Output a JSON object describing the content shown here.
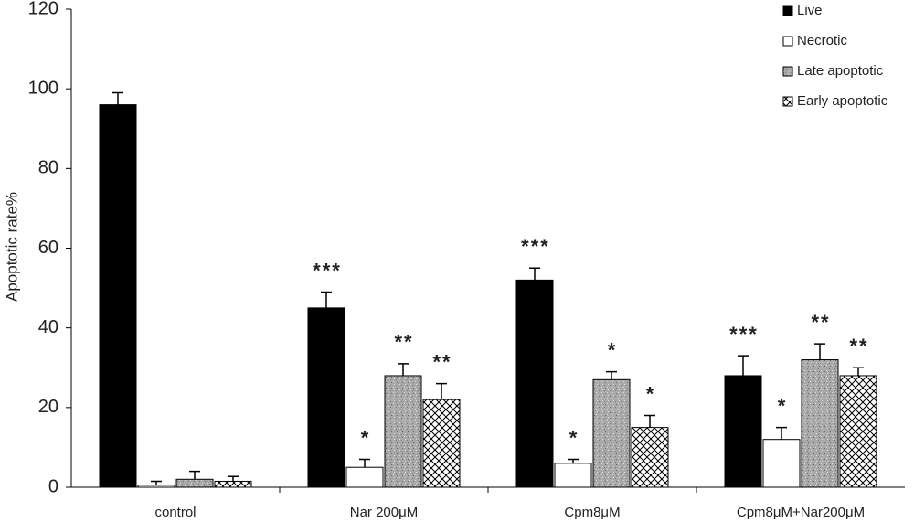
{
  "chart_data": {
    "type": "bar",
    "y_label": "Apoptotic rate%",
    "categories": [
      "control",
      "Nar 200μM",
      "Cpm8μM",
      "Cpm8μM+Nar200μM"
    ],
    "series": [
      {
        "name": "Live",
        "color": "#000000",
        "pattern": "solid",
        "values": [
          96,
          45,
          52,
          28
        ],
        "errors": [
          3,
          4,
          3,
          5
        ],
        "annotations": [
          null,
          "***",
          "***",
          "***"
        ]
      },
      {
        "name": "Necrotic",
        "color": "#ffffff",
        "pattern": "solid",
        "values": [
          0.5,
          5,
          6,
          12
        ],
        "errors": [
          1,
          2,
          1,
          3
        ],
        "annotations": [
          null,
          "*",
          "*",
          "*"
        ]
      },
      {
        "name": "Late apoptotic",
        "color": "#a9a9a9",
        "pattern": "texture",
        "values": [
          2,
          28,
          27,
          32
        ],
        "errors": [
          2,
          3,
          2,
          4
        ],
        "annotations": [
          null,
          "**",
          "*",
          "**"
        ]
      },
      {
        "name": "Early apoptotic",
        "color": "#ffffff",
        "pattern": "crosshatch",
        "values": [
          1.5,
          22,
          15,
          28
        ],
        "errors": [
          1.2,
          4,
          3,
          2
        ],
        "annotations": [
          null,
          "**",
          "*",
          "**"
        ]
      }
    ],
    "ylim": [
      0,
      120
    ],
    "yticks": [
      0,
      20,
      40,
      60,
      80,
      100,
      120
    ],
    "legend": "top-right",
    "grid": false
  }
}
